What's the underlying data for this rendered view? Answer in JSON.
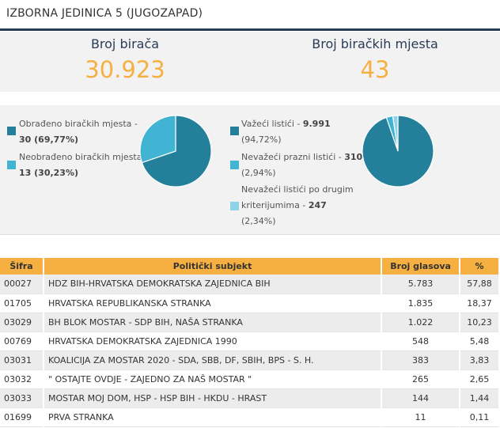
{
  "title": "IZBORNA JEDINICA 5 (JUGOZAPAD)",
  "stats": [
    {
      "label": "Broj birača",
      "value": "30.923"
    },
    {
      "label": "Broj biračkih mjesta",
      "value": "43"
    }
  ],
  "colors": {
    "dark": "#237f9a",
    "mid": "#41b3d3",
    "light": "#8fd3e8",
    "accent": "#f5b041"
  },
  "chart_data": [
    {
      "type": "pie",
      "series": [
        {
          "label": "Obrađeno biračkih mjesta -",
          "value": "30 (69,77%)",
          "count": 30,
          "color": "#237f9a"
        },
        {
          "label": "Neobrađeno biračkih mjesta -",
          "value": "13 (30,23%)",
          "count": 13,
          "color": "#41b3d3"
        }
      ]
    },
    {
      "type": "pie",
      "series": [
        {
          "label": "Važeći listići -",
          "value": "9.991",
          "pct": "(94,72%)",
          "count": 9991,
          "color": "#237f9a"
        },
        {
          "label": "Nevažeći prazni listići -",
          "value": "310",
          "pct": "(2,94%)",
          "count": 310,
          "color": "#41b3d3"
        },
        {
          "label": "Nevažeći listići po drugim",
          "label2": "kriterijumima -",
          "value": "247",
          "pct": "(2,34%)",
          "count": 247,
          "color": "#8fd3e8"
        }
      ]
    }
  ],
  "table": {
    "headers": [
      "Šifra",
      "Politički subjekt",
      "Broj glasova",
      "%"
    ],
    "rows": [
      [
        "00027",
        "HDZ BIH-HRVATSKA DEMOKRATSKA ZAJEDNICA BIH",
        "5.783",
        "57,88"
      ],
      [
        "01705",
        "HRVATSKA REPUBLIKANSKA STRANKA",
        "1.835",
        "18,37"
      ],
      [
        "03029",
        "BH BLOK MOSTAR - SDP BIH, NAŠA STRANKA",
        "1.022",
        "10,23"
      ],
      [
        "00769",
        "HRVATSKA DEMOKRATSKA ZAJEDNICA 1990",
        "548",
        "5,48"
      ],
      [
        "03031",
        "KOALICIJA ZA MOSTAR 2020 - SDA, SBB, DF, SBIH, BPS - S. H.",
        "383",
        "3,83"
      ],
      [
        "03032",
        "\" OSTAJTE OVDJE - ZAJEDNO ZA NAŠ MOSTAR \"",
        "265",
        "2,65"
      ],
      [
        "03033",
        "MOSTAR MOJ DOM, HSP - HSP BIH - HKDU - HRAST",
        "144",
        "1,44"
      ],
      [
        "01699",
        "PRVA STRANKA",
        "11",
        "0,11"
      ]
    ]
  }
}
